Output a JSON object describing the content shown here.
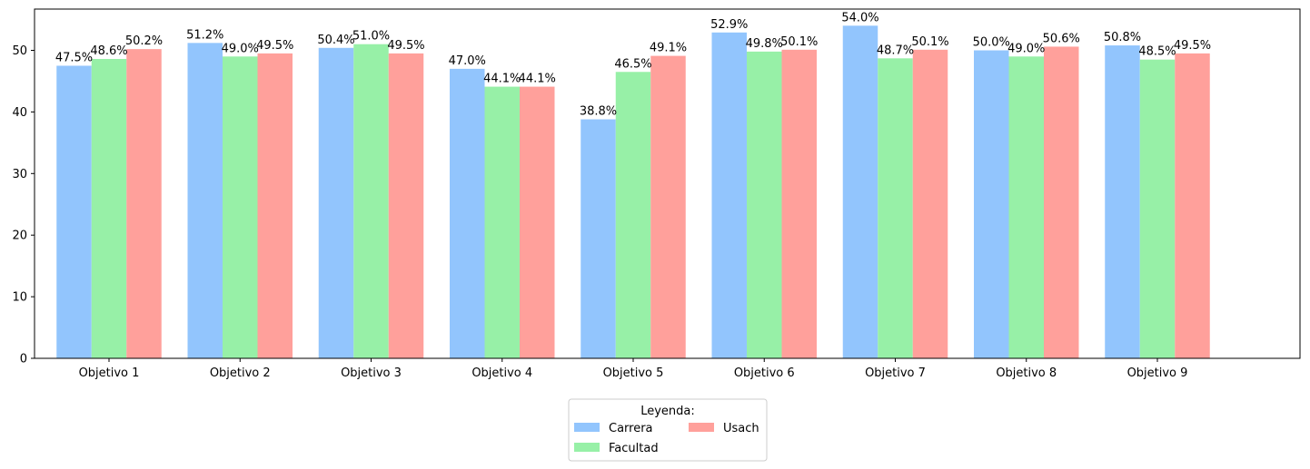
{
  "chart_data": {
    "type": "bar",
    "title": "",
    "xlabel": "",
    "ylabel": "",
    "categories": [
      "Objetivo 1",
      "Objetivo 2",
      "Objetivo 3",
      "Objetivo 4",
      "Objetivo 5",
      "Objetivo 6",
      "Objetivo 7",
      "Objetivo 8",
      "Objetivo 9"
    ],
    "series": [
      {
        "name": "Carrera",
        "color": "#92c5fd",
        "values": [
          47.5,
          51.2,
          50.4,
          47.0,
          38.8,
          52.9,
          54.0,
          50.0,
          50.8
        ]
      },
      {
        "name": "Facultad",
        "color": "#97f0a7",
        "values": [
          48.6,
          49.0,
          51.0,
          44.1,
          46.5,
          49.8,
          48.7,
          49.0,
          48.5
        ]
      },
      {
        "name": "Usach",
        "color": "#ffa09b",
        "values": [
          50.2,
          49.5,
          49.5,
          44.1,
          49.1,
          50.1,
          50.1,
          50.6,
          49.5
        ]
      }
    ],
    "value_labels": [
      [
        "47.5%",
        "51.2%",
        "50.4%",
        "47.0%",
        "38.8%",
        "52.9%",
        "54.0%",
        "50.0%",
        "50.8%"
      ],
      [
        "48.6%",
        "49.0%",
        "51.0%",
        "44.1%",
        "46.5%",
        "49.8%",
        "48.7%",
        "49.0%",
        "48.5%"
      ],
      [
        "50.2%",
        "49.5%",
        "49.5%",
        "44.1%",
        "49.1%",
        "50.1%",
        "50.1%",
        "50.6%",
        "49.5%"
      ]
    ],
    "yticks": [
      "0",
      "10",
      "20",
      "30",
      "40",
      "50"
    ],
    "ylim": [
      0,
      56.7
    ],
    "grid": false,
    "legend": {
      "title": "Leyenda:",
      "placement": "bottom-center",
      "entries": [
        "Carrera",
        "Facultad",
        "Usach"
      ]
    }
  }
}
